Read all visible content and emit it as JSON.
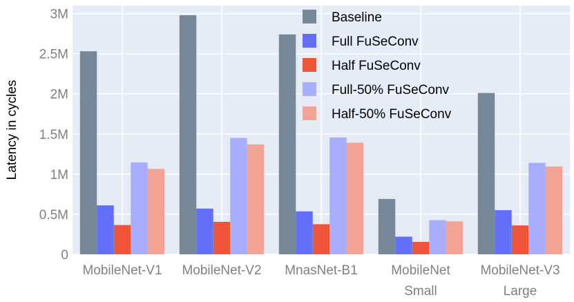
{
  "chart_data": {
    "type": "bar",
    "ylabel": "Latency in cycles",
    "ylim": [
      0,
      3100000
    ],
    "yticks": [
      {
        "value": 0,
        "label": "0"
      },
      {
        "value": 500000,
        "label": "0.5M"
      },
      {
        "value": 1000000,
        "label": "1M"
      },
      {
        "value": 1500000,
        "label": "1.5M"
      },
      {
        "value": 2000000,
        "label": "2M"
      },
      {
        "value": 2500000,
        "label": "2.5M"
      },
      {
        "value": 3000000,
        "label": "3M"
      }
    ],
    "categories": [
      [
        "MobileNet-V1"
      ],
      [
        "MobileNet-V2"
      ],
      [
        "MnasNet-B1"
      ],
      [
        "MobileNet",
        "Small"
      ],
      [
        "MobileNet-V3",
        "Large"
      ]
    ],
    "series": [
      {
        "name": "Baseline",
        "color": "#778899",
        "values": [
          2530000,
          2980000,
          2740000,
          690000,
          2010000
        ]
      },
      {
        "name": "Full FuSeConv",
        "color": "#636efa",
        "values": [
          610000,
          570000,
          535000,
          220000,
          550000
        ]
      },
      {
        "name": "Half FuSeConv",
        "color": "#ef553b",
        "values": [
          365000,
          405000,
          375000,
          155000,
          360000
        ]
      },
      {
        "name": "Full-50% FuSeConv",
        "color": "#a9aefc",
        "values": [
          1145000,
          1450000,
          1455000,
          425000,
          1140000
        ]
      },
      {
        "name": "Half-50% FuSeConv",
        "color": "#f2a396",
        "values": [
          1065000,
          1370000,
          1390000,
          410000,
          1095000
        ]
      }
    ],
    "legend_position": "top-center",
    "grid": true,
    "background": "#e5ecf6"
  }
}
